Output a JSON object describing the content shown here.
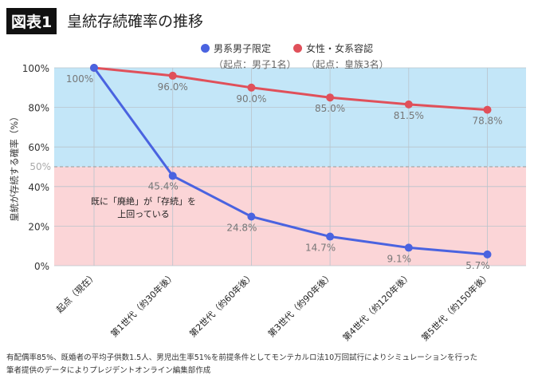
{
  "header": {
    "badge": "図表1",
    "title": "皇統存続確率の推移"
  },
  "chart_data": {
    "type": "line",
    "categories": [
      "起点（現在）",
      "第1世代（約30年後）",
      "第2世代（約60年後）",
      "第3世代（約90年後）",
      "第4世代（約120年後）",
      "第5世代（約150年後）"
    ],
    "series": [
      {
        "name": "男系男子限定",
        "subname": "（起点：男子1名）",
        "color": "#4a63e0",
        "values": [
          100,
          45.4,
          24.8,
          14.7,
          9.1,
          5.7
        ],
        "labels": [
          "",
          "45.4%",
          "24.8%",
          "14.7%",
          "9.1%",
          "5.7%"
        ]
      },
      {
        "name": "女性・女系容認",
        "subname": "（起点：皇族3名）",
        "color": "#e0505a",
        "values": [
          100,
          96.0,
          90.0,
          85.0,
          81.5,
          78.8
        ],
        "labels": [
          "100%",
          "96.0%",
          "90.0%",
          "85.0%",
          "81.5%",
          "78.8%"
        ]
      }
    ],
    "ylabel": "皇統が存続する確率（%）",
    "yticks": [
      "0%",
      "20%",
      "40%",
      "60%",
      "80%",
      "100%"
    ],
    "ylim": [
      0,
      100
    ],
    "threshold": {
      "value": 50,
      "label": "50%"
    },
    "regions": {
      "above_color": "#c3e6f8",
      "below_color": "#fbd5d7"
    },
    "annotation": [
      "既に「廃絶」が「存続」を",
      "上回っている"
    ],
    "grid": true,
    "legend": "top-center"
  },
  "footer": {
    "note1": "有配偶率85%、既婚者の平均子供数1.5人、男児出生率51%を前提条件としてモンテカルロ法10万回試行によりシミュレーションを行った",
    "note2": "筆者提供のデータによりプレジデントオンライン編集部作成"
  }
}
